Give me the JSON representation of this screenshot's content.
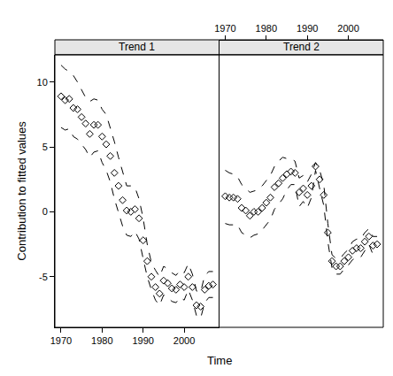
{
  "chart_data": {
    "type": "scatter",
    "x_label": "Time",
    "y_label": "Contribution to fitted values",
    "x": [
      1970,
      1971,
      1972,
      1973,
      1974,
      1975,
      1976,
      1977,
      1978,
      1979,
      1980,
      1981,
      1982,
      1983,
      1984,
      1985,
      1986,
      1987,
      1988,
      1989,
      1990,
      1991,
      1992,
      1993,
      1994,
      1995,
      1996,
      1997,
      1998,
      1999,
      2000,
      2001,
      2002,
      2003,
      2004,
      2005,
      2006,
      2007
    ],
    "xlim": [
      1968.5,
      2008.5
    ],
    "xticks": [
      1970,
      1980,
      1990,
      2000
    ],
    "ylim": [
      -8.9,
      12.1
    ],
    "yticks": [
      -5,
      0,
      5,
      10
    ],
    "grid": false,
    "marker": "diamond-open",
    "line_style": "dash",
    "color": "#000000",
    "panels": [
      {
        "title": "Trend 1",
        "values": [
          8.9,
          8.6,
          8.7,
          8.0,
          7.9,
          7.3,
          6.8,
          6.0,
          6.7,
          6.7,
          5.8,
          5.2,
          4.3,
          3.0,
          2.0,
          0.9,
          0.1,
          0.0,
          0.2,
          -0.5,
          -2.2,
          -3.8,
          -5.0,
          -5.8,
          -6.3,
          -5.3,
          -5.5,
          -5.9,
          -6.0,
          -5.6,
          -5.8,
          -5.0,
          -5.8,
          -7.2,
          -7.3,
          -6.0,
          -5.7,
          -5.6
        ],
        "upper": [
          11.3,
          11.0,
          10.8,
          10.5,
          10.0,
          9.4,
          8.8,
          8.5,
          8.7,
          8.6,
          7.9,
          7.5,
          6.5,
          5.4,
          4.2,
          3.0,
          2.0,
          2.0,
          1.9,
          1.0,
          -0.5,
          -2.5,
          -3.9,
          -4.5,
          -5.0,
          -4.2,
          -4.4,
          -4.7,
          -4.9,
          -4.5,
          -4.7,
          -4.0,
          -4.8,
          -6.1,
          -6.2,
          -4.9,
          -4.6,
          -4.6
        ],
        "lower": [
          6.5,
          6.3,
          6.4,
          5.8,
          5.6,
          5.2,
          4.8,
          4.2,
          4.6,
          4.7,
          3.8,
          3.2,
          2.3,
          1.0,
          0.0,
          -1.1,
          -1.8,
          -1.9,
          -1.5,
          -2.1,
          -3.6,
          -5.0,
          -6.0,
          -6.8,
          -7.2,
          -6.4,
          -6.6,
          -6.9,
          -7.0,
          -6.6,
          -6.8,
          -6.0,
          -6.8,
          -8.0,
          -8.2,
          -7.0,
          -6.6,
          -6.6
        ]
      },
      {
        "title": "Trend 2",
        "values": [
          1.2,
          1.1,
          1.1,
          1.0,
          0.3,
          0.1,
          -0.3,
          0.0,
          0.0,
          0.3,
          0.7,
          1.1,
          1.9,
          2.2,
          2.6,
          2.9,
          3.1,
          3.0,
          1.5,
          1.8,
          1.3,
          2.0,
          3.5,
          2.5,
          1.3,
          -1.6,
          -3.8,
          -4.2,
          -4.2,
          -3.8,
          -3.5,
          -3.0,
          -2.8,
          -2.8,
          -2.3,
          -1.9,
          -2.6,
          -2.5
        ],
        "upper": [
          3.2,
          3.0,
          2.9,
          2.7,
          2.1,
          1.8,
          1.5,
          1.6,
          1.7,
          2.0,
          2.4,
          2.8,
          3.5,
          3.9,
          4.2,
          4.1,
          4.1,
          3.9,
          2.6,
          2.8,
          2.3,
          2.9,
          3.8,
          3.2,
          2.1,
          -0.9,
          -3.3,
          -3.6,
          -3.6,
          -3.2,
          -2.9,
          -2.3,
          -2.1,
          -2.1,
          -1.6,
          -1.3,
          -1.9,
          -1.9
        ],
        "lower": [
          -0.9,
          -1.0,
          -1.0,
          -1.0,
          -1.6,
          -1.8,
          -2.0,
          -1.8,
          -1.7,
          -1.4,
          -1.0,
          -0.6,
          0.2,
          0.6,
          1.0,
          1.7,
          2.1,
          2.1,
          0.4,
          0.8,
          0.3,
          1.1,
          3.2,
          1.8,
          0.5,
          -2.3,
          -4.3,
          -4.8,
          -4.8,
          -4.4,
          -4.1,
          -3.7,
          -3.5,
          -3.5,
          -3.0,
          -2.5,
          -3.3,
          -3.2
        ]
      }
    ]
  }
}
